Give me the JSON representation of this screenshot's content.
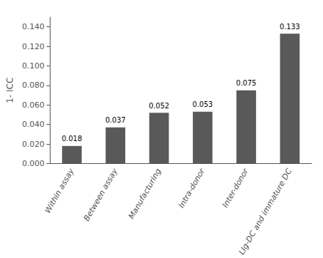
{
  "chart_data": {
    "type": "bar",
    "categories": [
      "Within assay",
      "Between assay",
      "Manufacturing",
      "Intra-donor",
      "Inter-donor",
      "LIg-DC and immature DC"
    ],
    "values": [
      0.018,
      0.037,
      0.052,
      0.053,
      0.075,
      0.133
    ],
    "color": "#595959",
    "ylabel": "1- ICC",
    "ylim": [
      0,
      0.15
    ],
    "yticks": [
      {
        "value": 0,
        "label": "0.000"
      },
      {
        "value": 0.02,
        "label": "0.020"
      },
      {
        "value": 0.04,
        "label": "0.040"
      },
      {
        "value": 0.06,
        "label": "0.060"
      },
      {
        "value": 0.08,
        "label": "0.080"
      },
      {
        "value": 0.1,
        "label": "0.100"
      },
      {
        "value": 0.12,
        "label": "0.120"
      },
      {
        "value": 0.14,
        "label": "0.140"
      }
    ],
    "grid": false,
    "data_labels": true
  }
}
